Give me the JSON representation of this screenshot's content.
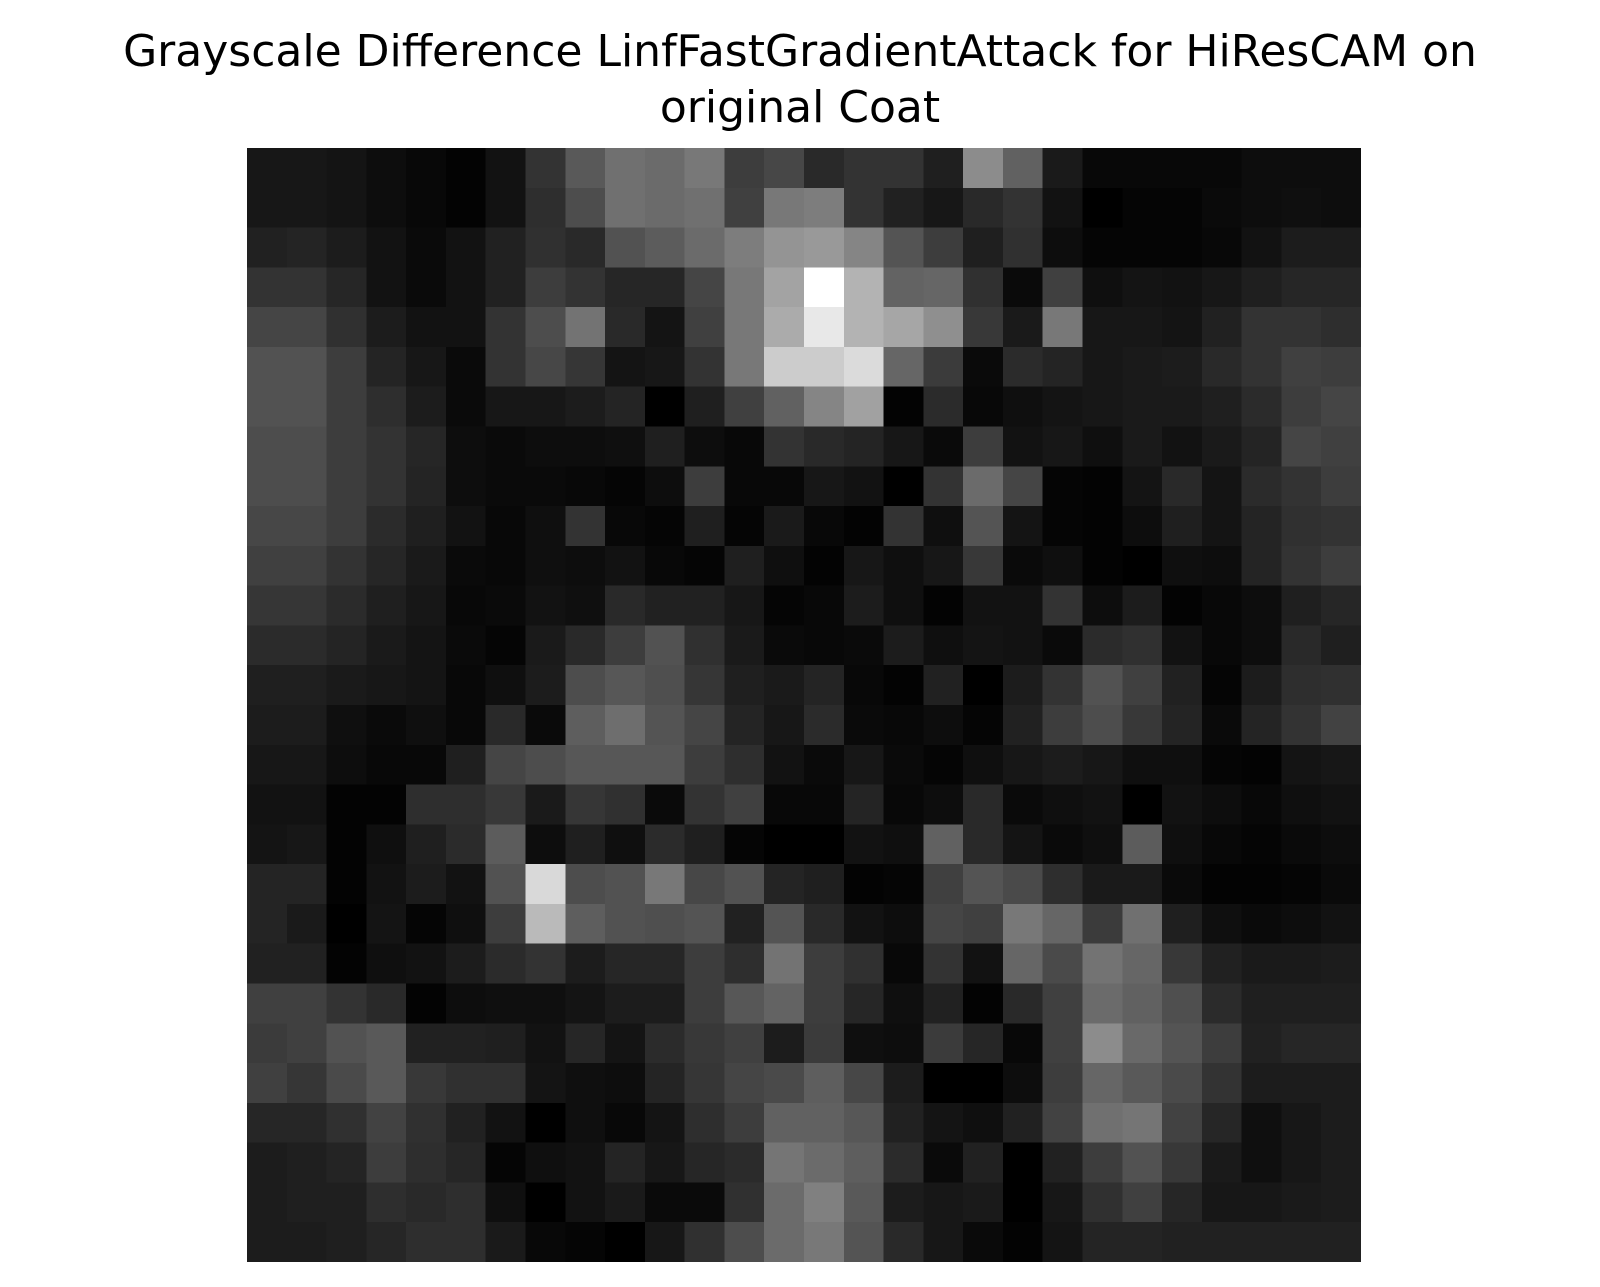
{
  "chart_data": {
    "type": "heatmap",
    "title_lines": [
      "Grayscale Difference LinfFastGradientAttack for HiResCAM on",
      "original Coat"
    ],
    "colormap": "gray",
    "axes_visible": false,
    "value_range": [
      0,
      1
    ],
    "rows": 28,
    "cols": 28,
    "values": [
      [
        0.09,
        0.09,
        0.08,
        0.05,
        0.03,
        0.01,
        0.07,
        0.2,
        0.35,
        0.44,
        0.42,
        0.47,
        0.24,
        0.28,
        0.16,
        0.2,
        0.2,
        0.12,
        0.55,
        0.38,
        0.1,
        0.03,
        0.03,
        0.03,
        0.03,
        0.05,
        0.05,
        0.05
      ],
      [
        0.09,
        0.09,
        0.08,
        0.05,
        0.03,
        0.01,
        0.07,
        0.18,
        0.3,
        0.44,
        0.42,
        0.44,
        0.25,
        0.47,
        0.49,
        0.2,
        0.13,
        0.09,
        0.16,
        0.2,
        0.07,
        0.0,
        0.02,
        0.02,
        0.04,
        0.05,
        0.06,
        0.05
      ],
      [
        0.13,
        0.14,
        0.11,
        0.07,
        0.04,
        0.07,
        0.13,
        0.19,
        0.16,
        0.32,
        0.36,
        0.42,
        0.49,
        0.58,
        0.6,
        0.52,
        0.33,
        0.24,
        0.12,
        0.19,
        0.05,
        0.02,
        0.02,
        0.02,
        0.03,
        0.07,
        0.11,
        0.11
      ],
      [
        0.2,
        0.2,
        0.15,
        0.07,
        0.04,
        0.07,
        0.13,
        0.24,
        0.2,
        0.15,
        0.15,
        0.27,
        0.47,
        0.64,
        1.0,
        0.7,
        0.39,
        0.4,
        0.19,
        0.04,
        0.25,
        0.06,
        0.08,
        0.07,
        0.09,
        0.12,
        0.15,
        0.15
      ],
      [
        0.27,
        0.27,
        0.19,
        0.11,
        0.07,
        0.07,
        0.2,
        0.3,
        0.45,
        0.16,
        0.08,
        0.25,
        0.47,
        0.67,
        0.91,
        0.7,
        0.65,
        0.56,
        0.22,
        0.1,
        0.47,
        0.09,
        0.09,
        0.08,
        0.13,
        0.2,
        0.2,
        0.18
      ],
      [
        0.32,
        0.32,
        0.24,
        0.14,
        0.09,
        0.04,
        0.2,
        0.28,
        0.21,
        0.08,
        0.09,
        0.2,
        0.47,
        0.8,
        0.8,
        0.86,
        0.4,
        0.23,
        0.04,
        0.17,
        0.14,
        0.09,
        0.1,
        0.11,
        0.16,
        0.2,
        0.25,
        0.24
      ],
      [
        0.32,
        0.32,
        0.24,
        0.18,
        0.11,
        0.04,
        0.09,
        0.09,
        0.11,
        0.14,
        0.0,
        0.12,
        0.25,
        0.38,
        0.52,
        0.63,
        0.01,
        0.17,
        0.03,
        0.06,
        0.08,
        0.09,
        0.1,
        0.1,
        0.12,
        0.17,
        0.24,
        0.27
      ],
      [
        0.3,
        0.3,
        0.24,
        0.2,
        0.15,
        0.05,
        0.04,
        0.05,
        0.05,
        0.06,
        0.12,
        0.05,
        0.03,
        0.2,
        0.16,
        0.14,
        0.09,
        0.04,
        0.24,
        0.07,
        0.09,
        0.06,
        0.1,
        0.07,
        0.1,
        0.14,
        0.27,
        0.25
      ],
      [
        0.3,
        0.3,
        0.24,
        0.2,
        0.14,
        0.05,
        0.04,
        0.04,
        0.03,
        0.02,
        0.05,
        0.24,
        0.03,
        0.03,
        0.09,
        0.07,
        0.0,
        0.2,
        0.42,
        0.27,
        0.02,
        0.01,
        0.08,
        0.16,
        0.08,
        0.17,
        0.2,
        0.24
      ],
      [
        0.28,
        0.28,
        0.24,
        0.17,
        0.12,
        0.07,
        0.03,
        0.06,
        0.2,
        0.03,
        0.02,
        0.12,
        0.02,
        0.1,
        0.03,
        0.01,
        0.2,
        0.06,
        0.33,
        0.08,
        0.02,
        0.01,
        0.05,
        0.12,
        0.08,
        0.14,
        0.19,
        0.2
      ],
      [
        0.25,
        0.25,
        0.2,
        0.15,
        0.1,
        0.04,
        0.03,
        0.06,
        0.05,
        0.07,
        0.03,
        0.02,
        0.12,
        0.06,
        0.01,
        0.09,
        0.06,
        0.09,
        0.22,
        0.04,
        0.06,
        0.01,
        0.0,
        0.06,
        0.05,
        0.14,
        0.2,
        0.24
      ],
      [
        0.21,
        0.21,
        0.17,
        0.12,
        0.09,
        0.03,
        0.04,
        0.07,
        0.06,
        0.16,
        0.13,
        0.13,
        0.09,
        0.02,
        0.03,
        0.11,
        0.06,
        0.01,
        0.07,
        0.07,
        0.2,
        0.05,
        0.11,
        0.01,
        0.03,
        0.05,
        0.12,
        0.15
      ],
      [
        0.17,
        0.17,
        0.14,
        0.1,
        0.08,
        0.04,
        0.02,
        0.1,
        0.16,
        0.24,
        0.32,
        0.19,
        0.1,
        0.04,
        0.03,
        0.04,
        0.11,
        0.06,
        0.08,
        0.07,
        0.04,
        0.17,
        0.19,
        0.07,
        0.03,
        0.05,
        0.16,
        0.12
      ],
      [
        0.12,
        0.12,
        0.1,
        0.09,
        0.08,
        0.03,
        0.06,
        0.11,
        0.3,
        0.34,
        0.31,
        0.21,
        0.12,
        0.1,
        0.14,
        0.03,
        0.01,
        0.13,
        0.0,
        0.11,
        0.2,
        0.32,
        0.25,
        0.13,
        0.02,
        0.11,
        0.18,
        0.19
      ],
      [
        0.11,
        0.11,
        0.06,
        0.04,
        0.06,
        0.03,
        0.16,
        0.04,
        0.37,
        0.43,
        0.33,
        0.27,
        0.14,
        0.09,
        0.17,
        0.04,
        0.03,
        0.05,
        0.02,
        0.13,
        0.24,
        0.3,
        0.22,
        0.14,
        0.04,
        0.14,
        0.2,
        0.26
      ],
      [
        0.09,
        0.09,
        0.05,
        0.03,
        0.03,
        0.12,
        0.27,
        0.3,
        0.34,
        0.34,
        0.34,
        0.24,
        0.18,
        0.07,
        0.04,
        0.09,
        0.04,
        0.02,
        0.06,
        0.09,
        0.11,
        0.09,
        0.06,
        0.06,
        0.02,
        0.01,
        0.08,
        0.09
      ],
      [
        0.07,
        0.07,
        0.01,
        0.01,
        0.18,
        0.18,
        0.22,
        0.1,
        0.21,
        0.19,
        0.04,
        0.2,
        0.25,
        0.03,
        0.03,
        0.14,
        0.03,
        0.05,
        0.16,
        0.04,
        0.06,
        0.07,
        0.0,
        0.07,
        0.05,
        0.03,
        0.06,
        0.07
      ],
      [
        0.08,
        0.09,
        0.01,
        0.06,
        0.12,
        0.17,
        0.36,
        0.05,
        0.12,
        0.06,
        0.17,
        0.12,
        0.02,
        0.0,
        0.0,
        0.07,
        0.06,
        0.38,
        0.16,
        0.08,
        0.04,
        0.06,
        0.36,
        0.06,
        0.03,
        0.02,
        0.04,
        0.05
      ],
      [
        0.14,
        0.14,
        0.01,
        0.07,
        0.11,
        0.07,
        0.32,
        0.85,
        0.3,
        0.32,
        0.47,
        0.28,
        0.32,
        0.14,
        0.12,
        0.01,
        0.02,
        0.25,
        0.33,
        0.29,
        0.18,
        0.1,
        0.1,
        0.04,
        0.01,
        0.01,
        0.02,
        0.04
      ],
      [
        0.14,
        0.1,
        0.0,
        0.08,
        0.02,
        0.06,
        0.24,
        0.73,
        0.37,
        0.32,
        0.31,
        0.33,
        0.13,
        0.33,
        0.16,
        0.07,
        0.05,
        0.27,
        0.25,
        0.47,
        0.4,
        0.23,
        0.44,
        0.12,
        0.06,
        0.04,
        0.05,
        0.07
      ],
      [
        0.13,
        0.13,
        0.01,
        0.06,
        0.07,
        0.11,
        0.17,
        0.2,
        0.11,
        0.15,
        0.15,
        0.24,
        0.18,
        0.45,
        0.24,
        0.19,
        0.03,
        0.2,
        0.07,
        0.4,
        0.29,
        0.45,
        0.4,
        0.22,
        0.13,
        0.1,
        0.1,
        0.11
      ],
      [
        0.25,
        0.25,
        0.2,
        0.16,
        0.01,
        0.05,
        0.06,
        0.06,
        0.08,
        0.11,
        0.11,
        0.24,
        0.34,
        0.39,
        0.24,
        0.15,
        0.06,
        0.13,
        0.01,
        0.16,
        0.25,
        0.42,
        0.38,
        0.31,
        0.17,
        0.12,
        0.12,
        0.12
      ],
      [
        0.23,
        0.25,
        0.32,
        0.35,
        0.13,
        0.13,
        0.12,
        0.07,
        0.15,
        0.08,
        0.17,
        0.22,
        0.25,
        0.11,
        0.23,
        0.06,
        0.05,
        0.23,
        0.15,
        0.03,
        0.25,
        0.55,
        0.41,
        0.33,
        0.24,
        0.13,
        0.15,
        0.15
      ],
      [
        0.25,
        0.21,
        0.29,
        0.35,
        0.22,
        0.19,
        0.19,
        0.08,
        0.06,
        0.05,
        0.14,
        0.21,
        0.27,
        0.29,
        0.37,
        0.28,
        0.11,
        0.0,
        0.0,
        0.05,
        0.24,
        0.4,
        0.35,
        0.29,
        0.2,
        0.11,
        0.11,
        0.11
      ],
      [
        0.15,
        0.15,
        0.19,
        0.26,
        0.19,
        0.13,
        0.07,
        0.0,
        0.06,
        0.03,
        0.08,
        0.18,
        0.24,
        0.38,
        0.38,
        0.34,
        0.13,
        0.08,
        0.06,
        0.13,
        0.26,
        0.44,
        0.46,
        0.26,
        0.15,
        0.06,
        0.09,
        0.11
      ],
      [
        0.11,
        0.12,
        0.14,
        0.24,
        0.18,
        0.15,
        0.02,
        0.06,
        0.07,
        0.14,
        0.09,
        0.15,
        0.17,
        0.46,
        0.42,
        0.37,
        0.17,
        0.04,
        0.13,
        0.0,
        0.13,
        0.24,
        0.32,
        0.22,
        0.1,
        0.06,
        0.09,
        0.11
      ],
      [
        0.11,
        0.12,
        0.12,
        0.18,
        0.16,
        0.18,
        0.06,
        0.0,
        0.07,
        0.1,
        0.04,
        0.04,
        0.19,
        0.42,
        0.5,
        0.35,
        0.11,
        0.09,
        0.1,
        0.0,
        0.09,
        0.19,
        0.25,
        0.15,
        0.09,
        0.09,
        0.1,
        0.11
      ],
      [
        0.11,
        0.11,
        0.12,
        0.15,
        0.18,
        0.18,
        0.1,
        0.03,
        0.02,
        0.0,
        0.09,
        0.19,
        0.3,
        0.42,
        0.47,
        0.33,
        0.16,
        0.09,
        0.04,
        0.01,
        0.08,
        0.14,
        0.14,
        0.13,
        0.13,
        0.13,
        0.13,
        0.13
      ]
    ]
  }
}
